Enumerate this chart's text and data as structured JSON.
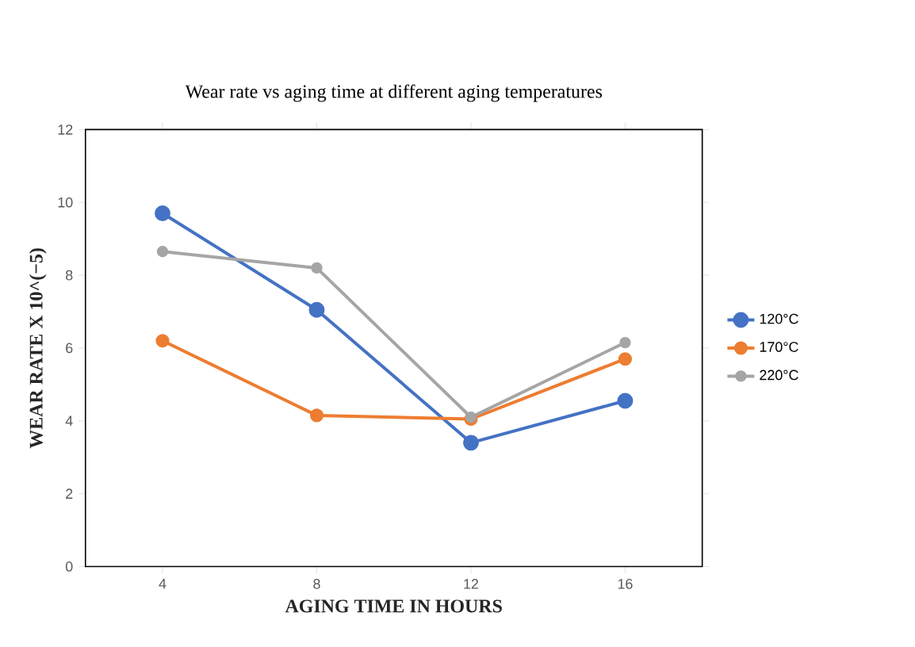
{
  "chart_data": {
    "type": "line",
    "title": "Wear rate vs aging time at different aging temperatures",
    "xlabel": "AGING TIME IN HOURS",
    "ylabel": "WEAR RATE  X 10^(−5)",
    "categories": [
      "4",
      "8",
      "12",
      "16"
    ],
    "series": [
      {
        "name": "120°C",
        "color": "#4472c4",
        "values": [
          9.7,
          7.05,
          3.4,
          4.55
        ]
      },
      {
        "name": "170°C",
        "color": "#ed7d31",
        "values": [
          6.2,
          4.15,
          4.05,
          5.7
        ]
      },
      {
        "name": "220°C",
        "color": "#a5a5a5",
        "values": [
          8.65,
          8.2,
          4.1,
          6.15
        ]
      }
    ],
    "ylim": [
      0,
      12
    ],
    "yticks": [
      0,
      2,
      4,
      6,
      8,
      10,
      12
    ],
    "grid": false,
    "legend": "right",
    "marker": "circle",
    "line_style": "solid"
  }
}
